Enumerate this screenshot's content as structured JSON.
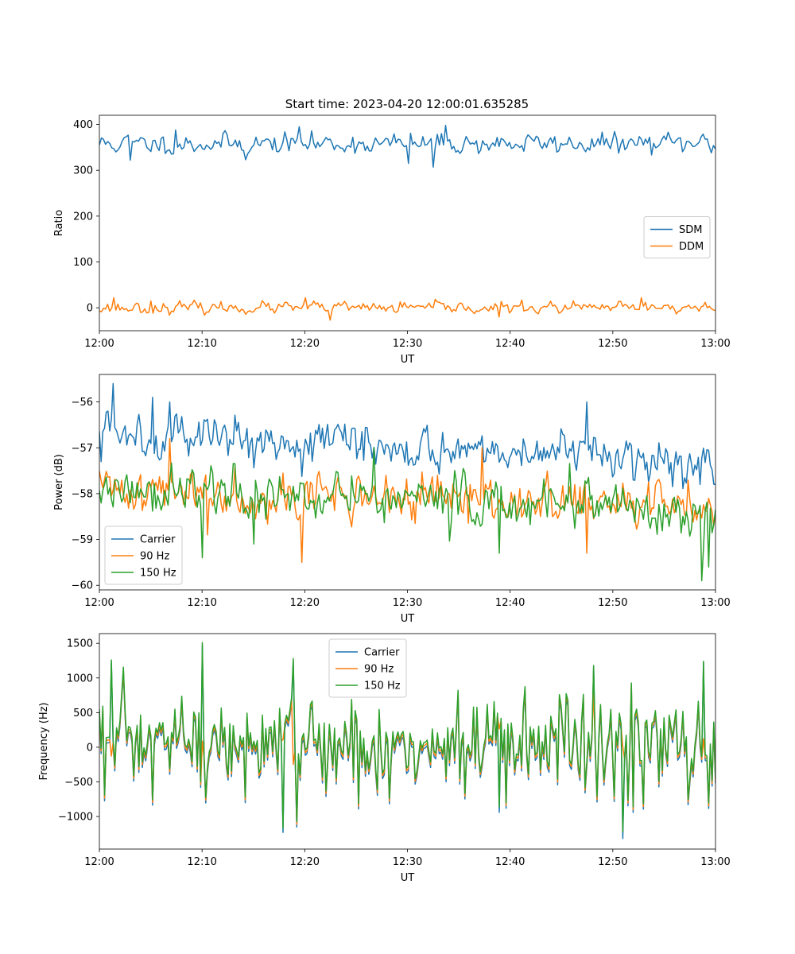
{
  "figure": {
    "title": "Start time: 2023-04-20 12:00:01.635285"
  },
  "chart_data": [
    {
      "type": "line",
      "xlabel": "UT",
      "ylabel": "Ratio",
      "xlim": [
        "12:00",
        "13:00"
      ],
      "ylim": [
        -50,
        420
      ],
      "xticks": [
        "12:00",
        "12:10",
        "12:20",
        "12:30",
        "12:40",
        "12:50",
        "13:00"
      ],
      "yticks": [
        0,
        100,
        200,
        300,
        400
      ],
      "legend": "center-right",
      "series": [
        {
          "name": "SDM",
          "color": "#1f77b4",
          "mean": 358,
          "noise": 14,
          "drift": 0,
          "samples": 300,
          "seed": 11,
          "extremes": [
            [
              3.0,
              322
            ],
            [
              7.5,
              388
            ],
            [
              19.5,
              395
            ],
            [
              33.8,
              398
            ],
            [
              32.5,
              307
            ],
            [
              30.1,
              315
            ],
            [
              14.2,
              323
            ]
          ]
        },
        {
          "name": "DDM",
          "color": "#ff7f0e",
          "mean": 0,
          "noise": 8,
          "drift": 0,
          "samples": 300,
          "seed": 23,
          "extremes": [
            [
              1.4,
              22
            ],
            [
              22.5,
              -27
            ],
            [
              20.0,
              22
            ],
            [
              52.7,
              22
            ],
            [
              39.0,
              -20
            ],
            [
              59.0,
              12
            ],
            [
              5.0,
              15
            ]
          ]
        }
      ]
    },
    {
      "type": "line",
      "xlabel": "UT",
      "ylabel": "Power (dB)",
      "xlim": [
        "12:00",
        "13:00"
      ],
      "ylim": [
        -60.1,
        -55.4
      ],
      "xticks": [
        "12:00",
        "12:10",
        "12:20",
        "12:30",
        "12:40",
        "12:50",
        "13:00"
      ],
      "yticks": [
        -60,
        -59,
        -58,
        -57,
        -56
      ],
      "legend": "lower-left",
      "series": [
        {
          "name": "Carrier",
          "color": "#1f77b4",
          "start": -56.6,
          "end": -57.3,
          "noise": 0.3,
          "samples": 360,
          "seed": 5,
          "extremes": [
            [
              1.3,
              -55.6
            ],
            [
              5.2,
              -55.9
            ],
            [
              6.8,
              -56.0
            ],
            [
              47.5,
              -56.0
            ],
            [
              0.2,
              -57.3
            ],
            [
              57.8,
              -57.6
            ],
            [
              60,
              -57.8
            ]
          ]
        },
        {
          "name": "90 Hz",
          "color": "#ff7f0e",
          "start": -57.9,
          "end": -58.3,
          "noise": 0.32,
          "samples": 360,
          "seed": 41,
          "extremes": [
            [
              19.7,
              -59.5
            ],
            [
              6.8,
              -56.8
            ],
            [
              10.6,
              -58.9
            ],
            [
              47.4,
              -59.3
            ],
            [
              37.3,
              -57.0
            ],
            [
              59.8,
              -58.7
            ]
          ]
        },
        {
          "name": "150 Hz",
          "color": "#2ca02c",
          "start": -57.9,
          "end": -58.4,
          "noise": 0.35,
          "samples": 360,
          "seed": 77,
          "extremes": [
            [
              58.7,
              -59.9
            ],
            [
              10.1,
              -59.4
            ],
            [
              15.1,
              -59.1
            ],
            [
              39.0,
              -59.3
            ],
            [
              26.8,
              -57.0
            ],
            [
              59.3,
              -59.6
            ]
          ]
        }
      ]
    },
    {
      "type": "line",
      "xlabel": "UT",
      "ylabel": "Frequency (Hz)",
      "xlim": [
        "12:00",
        "13:00"
      ],
      "ylim": [
        -1470,
        1640
      ],
      "xticks": [
        "12:00",
        "12:10",
        "12:20",
        "12:30",
        "12:40",
        "12:50",
        "13:00"
      ],
      "yticks": [
        -1000,
        -500,
        0,
        500,
        1000,
        1500
      ],
      "legend": "top-center",
      "series": [
        {
          "name": "Carrier",
          "color": "#1f77b4",
          "base": "shared",
          "offset": -60,
          "noise": 370,
          "samples": 360,
          "seed": 97,
          "extremes": [
            [
              10.0,
              1470
            ],
            [
              1.2,
              1230
            ],
            [
              18.9,
              1240
            ],
            [
              17.9,
              -1230
            ],
            [
              51.0,
              -1320
            ],
            [
              48.2,
              1160
            ],
            [
              38.9,
              -940
            ],
            [
              58.8,
              1230
            ]
          ]
        },
        {
          "name": "90 Hz",
          "color": "#ff7f0e",
          "base": "shared",
          "offset": -20,
          "noise": 370,
          "samples": 360,
          "seed": 97,
          "extremes": []
        },
        {
          "name": "150 Hz",
          "color": "#2ca02c",
          "base": "shared",
          "offset": 20,
          "noise": 370,
          "samples": 360,
          "seed": 97,
          "extremes": [
            [
              10.0,
              1510
            ],
            [
              1.2,
              1260
            ],
            [
              18.9,
              1280
            ],
            [
              17.9,
              -1170
            ],
            [
              51.0,
              -1220
            ],
            [
              48.2,
              1180
            ],
            [
              38.9,
              -860
            ],
            [
              58.8,
              1240
            ]
          ]
        }
      ]
    }
  ]
}
